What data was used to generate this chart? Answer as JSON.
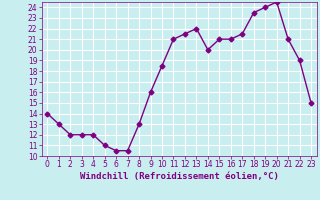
{
  "x": [
    0,
    1,
    2,
    3,
    4,
    5,
    6,
    7,
    8,
    9,
    10,
    11,
    12,
    13,
    14,
    15,
    16,
    17,
    18,
    19,
    20,
    21,
    22,
    23
  ],
  "y": [
    14,
    13,
    12,
    12,
    12,
    11,
    10.5,
    10.5,
    13,
    16,
    18.5,
    21,
    21.5,
    22,
    20,
    21,
    21,
    21.5,
    23.5,
    24,
    24.5,
    21,
    19,
    15
  ],
  "line_color": "#800080",
  "marker_color": "#800080",
  "bg_color": "#c8eef0",
  "grid_color": "#ffffff",
  "xlabel": "Windchill (Refroidissement éolien,°C)",
  "xlabel_color": "#800080",
  "xlim": [
    -0.5,
    23.5
  ],
  "ylim": [
    10,
    24.5
  ],
  "yticks": [
    10,
    11,
    12,
    13,
    14,
    15,
    16,
    17,
    18,
    19,
    20,
    21,
    22,
    23,
    24
  ],
  "xticks": [
    0,
    1,
    2,
    3,
    4,
    5,
    6,
    7,
    8,
    9,
    10,
    11,
    12,
    13,
    14,
    15,
    16,
    17,
    18,
    19,
    20,
    21,
    22,
    23
  ],
  "tick_fontsize": 5.5,
  "xlabel_fontsize": 6.5,
  "linewidth": 1.0,
  "markersize": 2.5
}
